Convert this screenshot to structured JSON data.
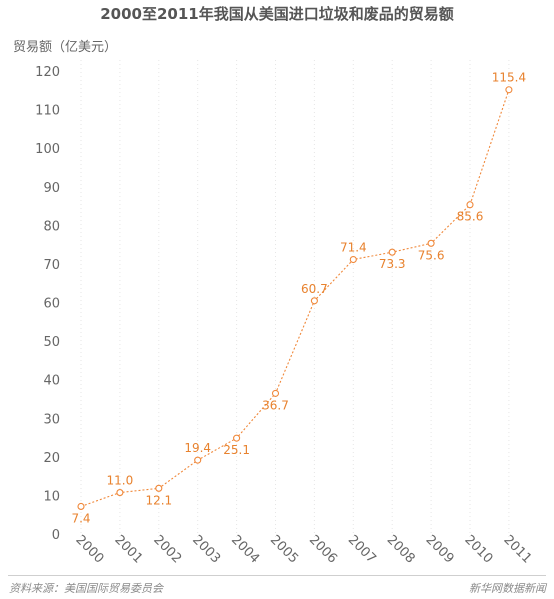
{
  "title": "2000至2011年我国从美国进口垃圾和废品的贸易额",
  "source": "资料来源：美国国际贸易委员会",
  "brand": "新华网数据新闻",
  "colors": {
    "line": "#f0883a",
    "label": "#e8822e",
    "grid": "#e6e6e6",
    "axis_text": "#666666"
  },
  "chart_data": {
    "type": "line",
    "ylabel": "贸易额（亿美元）",
    "ylim": [
      0,
      120
    ],
    "yticks": [
      0,
      10,
      20,
      30,
      40,
      50,
      60,
      70,
      80,
      90,
      100,
      110,
      120
    ],
    "categories": [
      "2000",
      "2001",
      "2002",
      "2003",
      "2004",
      "2005",
      "2006",
      "2007",
      "2008",
      "2009",
      "2010",
      "2011"
    ],
    "values": [
      7.4,
      11.0,
      12.1,
      19.4,
      25.1,
      36.7,
      60.7,
      71.4,
      73.3,
      75.6,
      85.6,
      115.4
    ],
    "label_text": [
      "7.4",
      "11.0",
      "12.1",
      "19.4",
      "25.1",
      "36.7",
      "60.7",
      "71.4",
      "73.3",
      "75.6",
      "85.6",
      "115.4"
    ],
    "label_side": [
      "below",
      "above",
      "below",
      "above",
      "below",
      "below",
      "above",
      "above",
      "below",
      "below",
      "below",
      "above"
    ],
    "grid": "vertical-dotted"
  }
}
